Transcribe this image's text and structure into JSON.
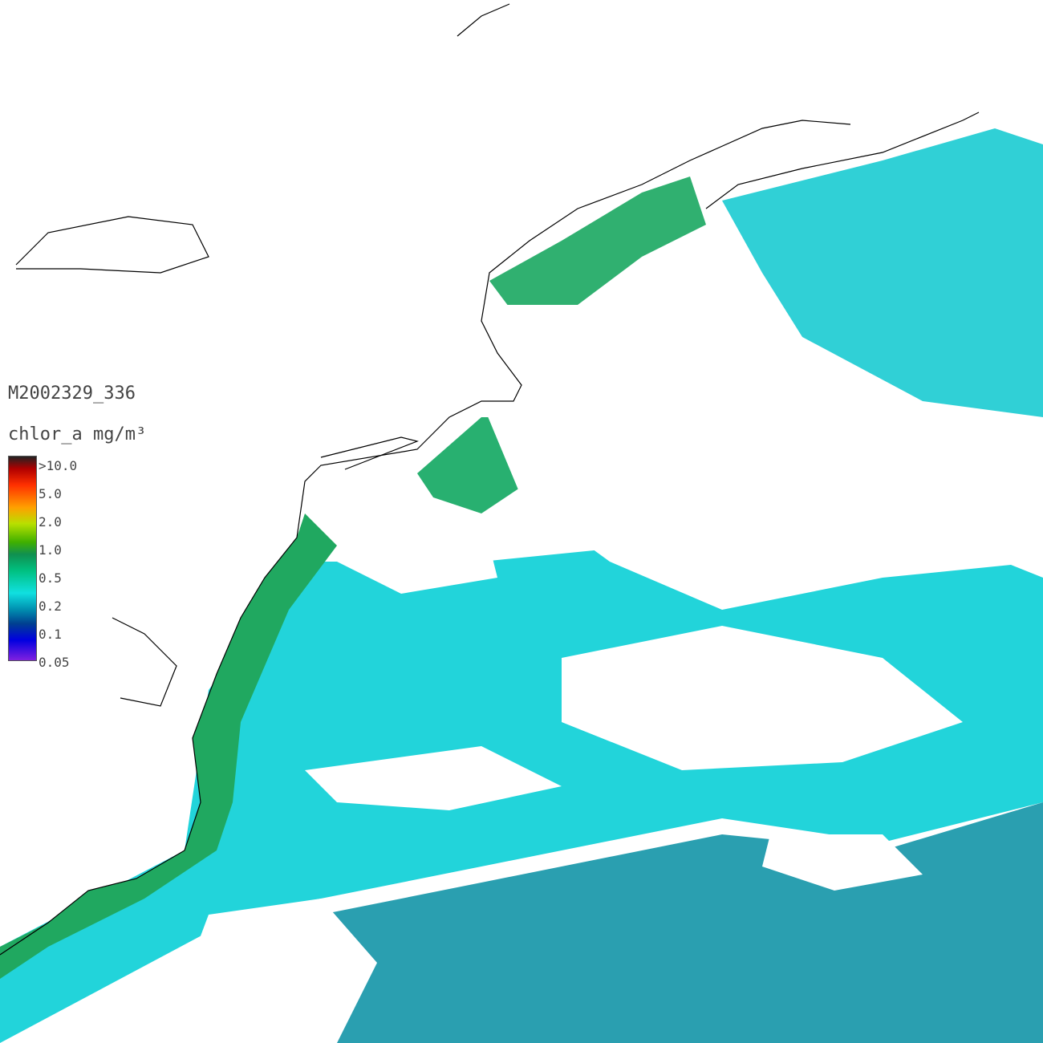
{
  "map": {
    "title": "M2002329_336",
    "legend": {
      "label": "chlor_a mg/m³",
      "tick_labels": [
        ">10.0",
        "5.0",
        "2.0",
        "1.0",
        "0.5",
        "0.2",
        "0.1",
        "0.05"
      ]
    }
  }
}
